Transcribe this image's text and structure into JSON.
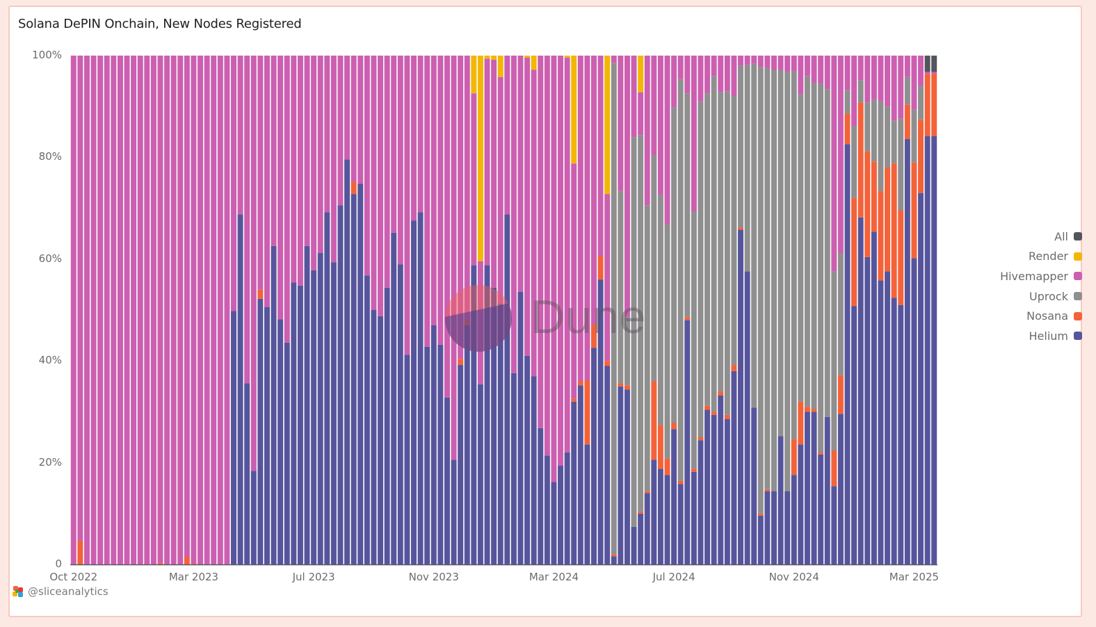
{
  "title": "Solana DePIN Onchain, New Nodes Registered",
  "credit": "@sliceanalytics",
  "watermark": "Dune",
  "chart_data": {
    "type": "bar",
    "stacked": true,
    "normalized": true,
    "title": "Solana DePIN Onchain, New Nodes Registered",
    "xlabel": "",
    "ylabel": "",
    "ylim": [
      0,
      100
    ],
    "yticks": [
      "0",
      "20%",
      "40%",
      "60%",
      "80%",
      "100%"
    ],
    "ytick_values": [
      0,
      20,
      40,
      60,
      80,
      100
    ],
    "xticks": [
      {
        "label": "Oct 2022",
        "index": 0
      },
      {
        "label": "Mar 2023",
        "index": 18
      },
      {
        "label": "Jul 2023",
        "index": 36
      },
      {
        "label": "Nov 2023",
        "index": 54
      },
      {
        "label": "Mar 2024",
        "index": 72
      },
      {
        "label": "Jul 2024",
        "index": 90
      },
      {
        "label": "Nov 2024",
        "index": 108
      },
      {
        "label": "Mar 2025",
        "index": 126
      }
    ],
    "legend_position": "right",
    "legend": [
      {
        "name": "All",
        "color": "#53555c"
      },
      {
        "name": "Render",
        "color": "#f2b705"
      },
      {
        "name": "Hivemapper",
        "color": "#cc5fb0"
      },
      {
        "name": "Uprock",
        "color": "#8f8f8f"
      },
      {
        "name": "Nosana",
        "color": "#f4623a"
      },
      {
        "name": "Helium",
        "color": "#56559c"
      }
    ],
    "stack_order": [
      "Helium",
      "Nosana",
      "Uprock",
      "Hivemapper",
      "Render",
      "All"
    ],
    "series_note": "Weekly shares in percent; Hivemapper = remainder to 100",
    "bars": [
      [
        0,
        0,
        0,
        0,
        0
      ],
      [
        0,
        4.7,
        0,
        0,
        0
      ],
      [
        0,
        0,
        0,
        0,
        0
      ],
      [
        0,
        0,
        0,
        0,
        0
      ],
      [
        0,
        0,
        0,
        0,
        0
      ],
      [
        0,
        0,
        0,
        0,
        0
      ],
      [
        0,
        0,
        0,
        0,
        0
      ],
      [
        0,
        0,
        0,
        0,
        0
      ],
      [
        0,
        0,
        0,
        0,
        0
      ],
      [
        0,
        0,
        0,
        0,
        0
      ],
      [
        0,
        0,
        0,
        0,
        0
      ],
      [
        0,
        0,
        0,
        0,
        0
      ],
      [
        0,
        0,
        0,
        0,
        0
      ],
      [
        0,
        0.3,
        0,
        0,
        0
      ],
      [
        0,
        0,
        0,
        0,
        0
      ],
      [
        0,
        0,
        0,
        0,
        0
      ],
      [
        0,
        0,
        0,
        0,
        0
      ],
      [
        0,
        1.5,
        0,
        0,
        0
      ],
      [
        0,
        0.2,
        0,
        0,
        0
      ],
      [
        0,
        0,
        0,
        0,
        0
      ],
      [
        0,
        0,
        0,
        0,
        0
      ],
      [
        0,
        0,
        0,
        0,
        0
      ],
      [
        0,
        0,
        0,
        0,
        0
      ],
      [
        0,
        0,
        0,
        0,
        0
      ],
      [
        49.8,
        0,
        0,
        0,
        0
      ],
      [
        68.8,
        0,
        0,
        0,
        0
      ],
      [
        35.6,
        0,
        0,
        0,
        0
      ],
      [
        18.4,
        0,
        0,
        0,
        0
      ],
      [
        52.2,
        1.8,
        0,
        0,
        0
      ],
      [
        50.6,
        0,
        0,
        0,
        0
      ],
      [
        62.6,
        0,
        0,
        0,
        0
      ],
      [
        48.2,
        0,
        0,
        0,
        0
      ],
      [
        43.6,
        0,
        0,
        0,
        0
      ],
      [
        55.4,
        0,
        0,
        0,
        0
      ],
      [
        54.8,
        0,
        0,
        0,
        0
      ],
      [
        62.6,
        0,
        0,
        0,
        0
      ],
      [
        57.8,
        0,
        0,
        0,
        0
      ],
      [
        61.2,
        0,
        0,
        0,
        0
      ],
      [
        69.2,
        0,
        0,
        0,
        0
      ],
      [
        59.4,
        0,
        0,
        0,
        0
      ],
      [
        70.6,
        0,
        0,
        0,
        0
      ],
      [
        79.6,
        0,
        0,
        0,
        0
      ],
      [
        72.8,
        2.4,
        0,
        0,
        0
      ],
      [
        74.8,
        0,
        0,
        0,
        0
      ],
      [
        56.8,
        0,
        0,
        0,
        0
      ],
      [
        50.0,
        0,
        0,
        0,
        0
      ],
      [
        48.8,
        0,
        0,
        0,
        0
      ],
      [
        54.4,
        0,
        0,
        0,
        0
      ],
      [
        65.2,
        0,
        0,
        0,
        0
      ],
      [
        59.0,
        0,
        0,
        0,
        0
      ],
      [
        41.2,
        0,
        0,
        0,
        0
      ],
      [
        67.6,
        0,
        0,
        0,
        0
      ],
      [
        69.2,
        0,
        0,
        0,
        0
      ],
      [
        42.8,
        0,
        0,
        0,
        0
      ],
      [
        47.0,
        0,
        0,
        0,
        0
      ],
      [
        43.2,
        0,
        0,
        0,
        0
      ],
      [
        32.8,
        0,
        0,
        0,
        0
      ],
      [
        20.6,
        0,
        0,
        0,
        0
      ],
      [
        39.2,
        1.2,
        0,
        0,
        0
      ],
      [
        47.0,
        1.2,
        0,
        0,
        0
      ],
      [
        58.8,
        0,
        0,
        7.4,
        0
      ],
      [
        35.4,
        0,
        0,
        40.4,
        0
      ],
      [
        58.8,
        0,
        0,
        0.6,
        0
      ],
      [
        54.4,
        0,
        0,
        0.8,
        0
      ],
      [
        51.2,
        0,
        0,
        4.2,
        0
      ],
      [
        68.8,
        0,
        0,
        0,
        0
      ],
      [
        37.6,
        0,
        0,
        0,
        0
      ],
      [
        53.6,
        0,
        0,
        0,
        0
      ],
      [
        41.0,
        0,
        0,
        0.4,
        0
      ],
      [
        37.0,
        0,
        0,
        2.8,
        0
      ],
      [
        26.8,
        0,
        0,
        0,
        0
      ],
      [
        21.4,
        0,
        0,
        0,
        0
      ],
      [
        16.2,
        0,
        0,
        0,
        0
      ],
      [
        19.4,
        0,
        0,
        0,
        0
      ],
      [
        22.0,
        0,
        0,
        0.4,
        0
      ],
      [
        32.0,
        0.6,
        0,
        21.2,
        0
      ],
      [
        35.2,
        0.8,
        0,
        0,
        0
      ],
      [
        23.6,
        12.6,
        0,
        0,
        0
      ],
      [
        42.6,
        4.6,
        0,
        0,
        0
      ],
      [
        56.0,
        4.6,
        0,
        0,
        0
      ],
      [
        39.0,
        1.0,
        0,
        27.2,
        0
      ],
      [
        1.6,
        0.4,
        96.6,
        0,
        0
      ],
      [
        35.0,
        0.6,
        37.8,
        0,
        0
      ],
      [
        34.4,
        0.8,
        13.4,
        0,
        0
      ],
      [
        7.4,
        0,
        76.6,
        0,
        0
      ],
      [
        10.0,
        0.4,
        74.0,
        7.2,
        0
      ],
      [
        14.0,
        0.4,
        56.2,
        0,
        0
      ],
      [
        20.6,
        15.4,
        44.4,
        0,
        0
      ],
      [
        18.8,
        8.6,
        45.2,
        0,
        0
      ],
      [
        17.6,
        3.2,
        46.0,
        0,
        0
      ],
      [
        26.6,
        1.2,
        62.0,
        0,
        0
      ],
      [
        15.8,
        0.6,
        79.0,
        0,
        0
      ],
      [
        48.0,
        0.6,
        44.0,
        0,
        0
      ],
      [
        18.2,
        0.6,
        50.6,
        0,
        0
      ],
      [
        24.4,
        0.6,
        66.0,
        0,
        0
      ],
      [
        30.4,
        0.8,
        61.4,
        0,
        0
      ],
      [
        29.4,
        0.6,
        66.0,
        0,
        0
      ],
      [
        33.2,
        0.8,
        58.8,
        0,
        0
      ],
      [
        28.6,
        0.8,
        63.6,
        0,
        0
      ],
      [
        38.0,
        1.2,
        52.8,
        0,
        0
      ],
      [
        65.8,
        0.4,
        31.8,
        0,
        0
      ],
      [
        57.6,
        0,
        40.6,
        0,
        0
      ],
      [
        30.8,
        0,
        67.6,
        0,
        0
      ],
      [
        9.6,
        0.4,
        87.8,
        0,
        0
      ],
      [
        14.4,
        0.4,
        82.8,
        0,
        0
      ],
      [
        14.4,
        0,
        82.8,
        0,
        0
      ],
      [
        25.2,
        0,
        72.0,
        0,
        0
      ],
      [
        14.4,
        0,
        82.4,
        0,
        0
      ],
      [
        17.6,
        7.0,
        72.4,
        0,
        0
      ],
      [
        23.6,
        8.4,
        60.4,
        0,
        0
      ],
      [
        30.0,
        1.0,
        65.0,
        0,
        0
      ],
      [
        30.0,
        0.6,
        64.0,
        0,
        0
      ],
      [
        21.6,
        0.4,
        72.6,
        0,
        0
      ],
      [
        29.0,
        0,
        64.4,
        0,
        0
      ],
      [
        15.4,
        7.0,
        35.2,
        0,
        0
      ],
      [
        29.6,
        7.6,
        24.0,
        0,
        0
      ],
      [
        82.6,
        6.0,
        4.6,
        0,
        0
      ],
      [
        50.8,
        21.2,
        14.2,
        0,
        0
      ],
      [
        68.2,
        22.6,
        4.4,
        0,
        0
      ],
      [
        60.4,
        20.8,
        9.6,
        0,
        0
      ],
      [
        65.4,
        13.8,
        12.2,
        0,
        0
      ],
      [
        55.8,
        17.6,
        17.6,
        0,
        0
      ],
      [
        57.6,
        20.4,
        12.0,
        0,
        0
      ],
      [
        52.4,
        26.4,
        8.4,
        0,
        0
      ],
      [
        51.0,
        18.6,
        18.0,
        0,
        0
      ],
      [
        83.6,
        6.8,
        5.4,
        0,
        0
      ],
      [
        60.2,
        18.8,
        10.4,
        0,
        0
      ],
      [
        73.0,
        14.4,
        6.6,
        0,
        0
      ],
      [
        84.2,
        12.2,
        0,
        0,
        3.2
      ],
      [
        84.2,
        12.2,
        0,
        0,
        3.2
      ]
    ]
  }
}
